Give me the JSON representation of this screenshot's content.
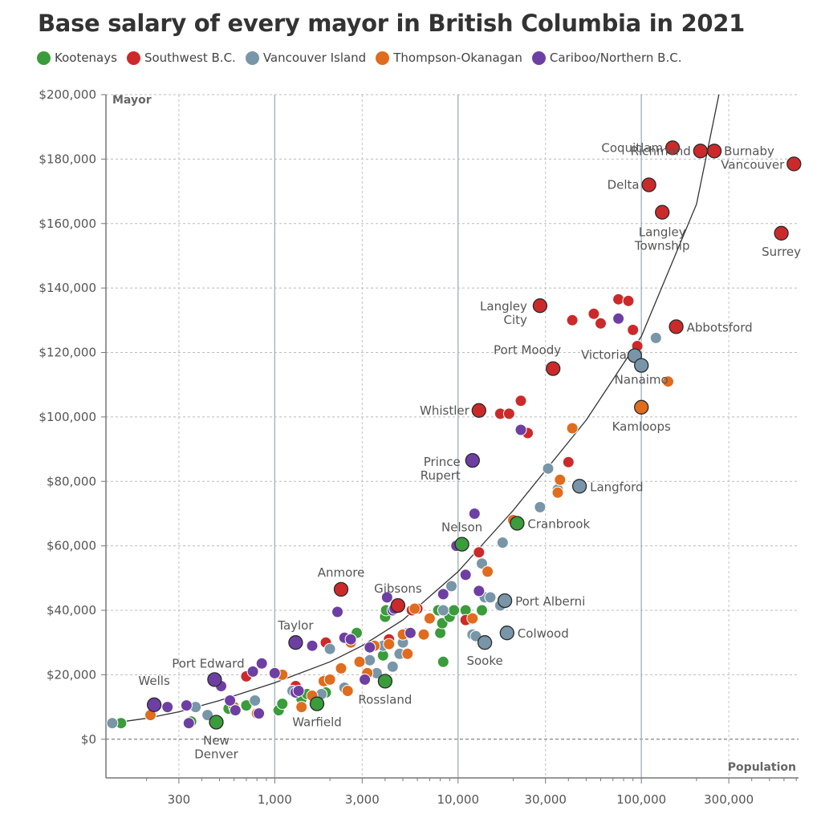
{
  "title": "Base salary of every mayor in British Columbia in 2021",
  "legend": [
    {
      "label": "Kootenays",
      "color": "#3a9c3a"
    },
    {
      "label": "Southwest B.C.",
      "color": "#cc2a2a"
    },
    {
      "label": "Vancouver Island",
      "color": "#7896a8"
    },
    {
      "label": "Thompson-Okanagan",
      "color": "#e06c1e"
    },
    {
      "label": "Cariboo/Northern B.C.",
      "color": "#6e3fa3"
    }
  ],
  "chart_data": {
    "type": "scatter",
    "title": "Base salary of every mayor in British Columbia in 2021",
    "xlabel": "Population",
    "ylabel": "Mayor",
    "x_scale": "log",
    "xlim": [
      120,
      720000
    ],
    "ylim": [
      -12000,
      200000
    ],
    "x_ticks": [
      300,
      1000,
      3000,
      10000,
      30000,
      100000,
      300000
    ],
    "x_tick_labels": [
      "300",
      "1,000",
      "3,000",
      "10,000",
      "30,000",
      "100,000",
      "300,000"
    ],
    "y_ticks": [
      0,
      20000,
      40000,
      60000,
      80000,
      100000,
      120000,
      140000,
      160000,
      180000,
      200000
    ],
    "y_tick_labels": [
      "$0",
      "$20,000",
      "$40,000",
      "$60,000",
      "$80,000",
      "$100,000",
      "$120,000",
      "$140,000",
      "$160,000",
      "$180,000",
      "$200,000"
    ],
    "grid": true,
    "legend_position": "top-left",
    "trend_line": {
      "type": "fit",
      "x": [
        150,
        200,
        300,
        500,
        1000,
        2000,
        3000,
        5000,
        10000,
        20000,
        50000,
        100000,
        200000,
        265000
      ],
      "y": [
        5500,
        6500,
        8500,
        12000,
        17500,
        24000,
        29000,
        37000,
        52000,
        71000,
        99000,
        125000,
        166000,
        200000
      ]
    },
    "labeled_points": [
      {
        "label": "Coquitlam",
        "x": 148000,
        "y": 183500,
        "region": "Southwest B.C.",
        "label_lines": [
          "Coquitlam"
        ]
      },
      {
        "label": "Richmond",
        "x": 210000,
        "y": 182500,
        "region": "Southwest B.C.",
        "label_lines": [
          "Richmond"
        ]
      },
      {
        "label": "Burnaby",
        "x": 250000,
        "y": 182500,
        "region": "Southwest B.C.",
        "label_lines": [
          "Burnaby"
        ]
      },
      {
        "label": "Vancouver",
        "x": 680000,
        "y": 178500,
        "region": "Southwest B.C.",
        "label_lines": [
          "Vancouver"
        ]
      },
      {
        "label": "Delta",
        "x": 110000,
        "y": 172000,
        "region": "Southwest B.C.",
        "label_lines": [
          "Delta"
        ]
      },
      {
        "label": "Langley Township",
        "x": 130000,
        "y": 163500,
        "region": "Southwest B.C.",
        "label_lines": [
          "Langley",
          "Township"
        ]
      },
      {
        "label": "Surrey",
        "x": 580000,
        "y": 157000,
        "region": "Southwest B.C.",
        "label_lines": [
          "Surrey"
        ]
      },
      {
        "label": "Langley City",
        "x": 28000,
        "y": 134500,
        "region": "Southwest B.C.",
        "label_lines": [
          "Langley",
          "City"
        ]
      },
      {
        "label": "Abbotsford",
        "x": 155000,
        "y": 128000,
        "region": "Southwest B.C.",
        "label_lines": [
          "Abbotsford"
        ]
      },
      {
        "label": "Port Moody",
        "x": 33000,
        "y": 115000,
        "region": "Southwest B.C.",
        "label_lines": [
          "Port Moody"
        ]
      },
      {
        "label": "Victoria",
        "x": 92000,
        "y": 119000,
        "region": "Vancouver Island",
        "label_lines": [
          "Victoria"
        ]
      },
      {
        "label": "Nanaimo",
        "x": 100000,
        "y": 116000,
        "region": "Vancouver Island",
        "label_lines": [
          "Nanaimo"
        ]
      },
      {
        "label": "Whistler",
        "x": 13000,
        "y": 102000,
        "region": "Southwest B.C.",
        "label_lines": [
          "Whistler"
        ]
      },
      {
        "label": "Kamloops",
        "x": 100000,
        "y": 103000,
        "region": "Thompson-Okanagan",
        "label_lines": [
          "Kamloops"
        ]
      },
      {
        "label": "Prince Rupert",
        "x": 12000,
        "y": 86500,
        "region": "Cariboo/Northern B.C.",
        "label_lines": [
          "Prince",
          "Rupert"
        ]
      },
      {
        "label": "Langford",
        "x": 46000,
        "y": 78500,
        "region": "Vancouver Island",
        "label_lines": [
          "Langford"
        ]
      },
      {
        "label": "Cranbrook",
        "x": 21000,
        "y": 67000,
        "region": "Kootenays",
        "label_lines": [
          "Cranbrook"
        ]
      },
      {
        "label": "Nelson",
        "x": 10500,
        "y": 60500,
        "region": "Kootenays",
        "label_lines": [
          "Nelson"
        ]
      },
      {
        "label": "Anmore",
        "x": 2300,
        "y": 46500,
        "region": "Southwest B.C.",
        "label_lines": [
          "Anmore"
        ]
      },
      {
        "label": "Gibsons",
        "x": 4700,
        "y": 41500,
        "region": "Southwest B.C.",
        "label_lines": [
          "Gibsons"
        ]
      },
      {
        "label": "Port Alberni",
        "x": 18000,
        "y": 43000,
        "region": "Vancouver Island",
        "label_lines": [
          "Port Alberni"
        ]
      },
      {
        "label": "Colwood",
        "x": 18500,
        "y": 33000,
        "region": "Vancouver Island",
        "label_lines": [
          "Colwood"
        ]
      },
      {
        "label": "Sooke",
        "x": 14000,
        "y": 30000,
        "region": "Vancouver Island",
        "label_lines": [
          "Sooke"
        ]
      },
      {
        "label": "Taylor",
        "x": 1300,
        "y": 30000,
        "region": "Cariboo/Northern B.C.",
        "label_lines": [
          "Taylor"
        ]
      },
      {
        "label": "Port Edward",
        "x": 470,
        "y": 18500,
        "region": "Cariboo/Northern B.C.",
        "label_lines": [
          "Port Edward"
        ]
      },
      {
        "label": "Rossland",
        "x": 4000,
        "y": 18000,
        "region": "Kootenays",
        "label_lines": [
          "Rossland"
        ]
      },
      {
        "label": "Wells",
        "x": 220,
        "y": 10700,
        "region": "Cariboo/Northern B.C.",
        "label_lines": [
          "Wells"
        ]
      },
      {
        "label": "Warfield",
        "x": 1700,
        "y": 11000,
        "region": "Kootenays",
        "label_lines": [
          "Warfield"
        ]
      },
      {
        "label": "New Denver",
        "x": 480,
        "y": 5300,
        "region": "Kootenays",
        "label_lines": [
          "New",
          "Denver"
        ]
      }
    ],
    "series": [
      {
        "name": "Kootenays",
        "x": [
          145,
          350,
          560,
          700,
          1050,
          1100,
          1400,
          1500,
          1900,
          2800,
          3900,
          4000,
          4050,
          7800,
          8000,
          8200,
          8300,
          9000,
          9500,
          11000,
          13500
        ],
        "y": [
          5000,
          5500,
          9500,
          10500,
          9000,
          11000,
          12500,
          14000,
          14500,
          33000,
          26000,
          38000,
          40000,
          40000,
          33000,
          36000,
          24000,
          38000,
          40000,
          40000,
          40000
        ]
      },
      {
        "name": "Southwest B.C.",
        "x": [
          700,
          1300,
          1900,
          4200,
          5600,
          6000,
          11000,
          13000,
          17000,
          19000,
          22000,
          24000,
          28000,
          40000,
          42000,
          55000,
          60000,
          75000,
          85000,
          90000,
          95000
        ],
        "y": [
          19500,
          16500,
          30000,
          31000,
          40000,
          40500,
          37000,
          58000,
          101000,
          101000,
          105000,
          95000,
          134000,
          86000,
          130000,
          132000,
          129000,
          136500,
          136000,
          127000,
          122000
        ]
      },
      {
        "name": "Vancouver Island",
        "x": [
          130,
          370,
          430,
          780,
          1250,
          1800,
          2000,
          2400,
          3300,
          3600,
          3900,
          4400,
          4800,
          5000,
          5300,
          8300,
          9200,
          12000,
          13500,
          14000,
          15000,
          17000,
          17500,
          28000,
          31000,
          35000,
          120000,
          12500
        ],
        "y": [
          5000,
          10000,
          7500,
          12000,
          15000,
          14000,
          28000,
          16000,
          24500,
          20500,
          29000,
          22500,
          26500,
          30000,
          33000,
          40000,
          47500,
          32500,
          54500,
          44000,
          44000,
          41500,
          61000,
          72000,
          84000,
          77500,
          124500,
          32000
        ]
      },
      {
        "name": "Thompson-Okanagan",
        "x": [
          210,
          600,
          800,
          1100,
          1400,
          1600,
          1850,
          2000,
          2300,
          2500,
          2600,
          2900,
          3200,
          3500,
          4200,
          5000,
          5300,
          5800,
          6500,
          7000,
          12000,
          14500,
          20000,
          35000,
          36000,
          42000,
          140000
        ],
        "y": [
          7500,
          10000,
          8000,
          20000,
          10000,
          13500,
          18000,
          18500,
          22000,
          15000,
          30000,
          24000,
          20500,
          29000,
          29500,
          32500,
          26500,
          40500,
          32500,
          37500,
          37500,
          52000,
          68000,
          76500,
          80500,
          96500,
          111000
        ]
      },
      {
        "name": "Cariboo/Northern B.C.",
        "x": [
          260,
          330,
          340,
          510,
          570,
          610,
          760,
          820,
          850,
          1000,
          1300,
          1350,
          1600,
          2200,
          2400,
          2600,
          3100,
          3300,
          4100,
          4400,
          4500,
          5500,
          8300,
          9800,
          11000,
          12300,
          13000,
          22000,
          75000
        ],
        "y": [
          10000,
          10500,
          5000,
          16500,
          12000,
          9000,
          21000,
          8000,
          23500,
          20500,
          14500,
          15000,
          29000,
          39500,
          31500,
          31000,
          18500,
          28500,
          44000,
          40000,
          40500,
          33000,
          45000,
          60000,
          51000,
          70000,
          46000,
          96000,
          130500
        ]
      }
    ]
  }
}
